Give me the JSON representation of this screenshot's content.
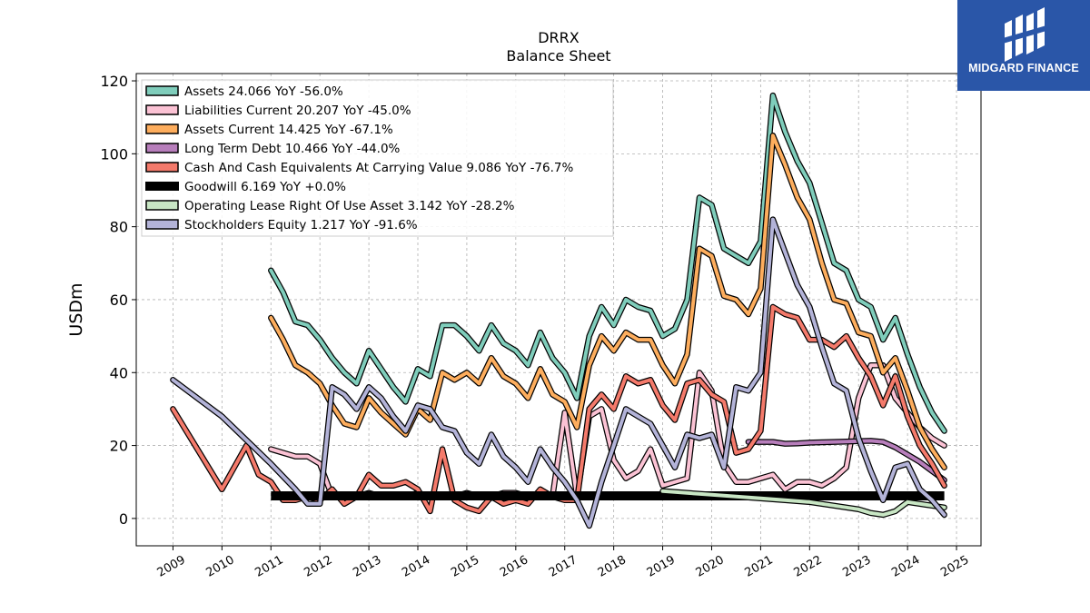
{
  "header": {
    "ticker": "DRRX",
    "subtitle": "Balance  Sheet"
  },
  "logo": {
    "text": "MIDGARD FINANCE",
    "color": "#2a56a8"
  },
  "chart_data": {
    "type": "line",
    "title": "DRRX",
    "subtitle": "Balance  Sheet",
    "xlabel": "",
    "ylabel": "USDm",
    "xlim": [
      2008.25,
      2025.5
    ],
    "ylim": [
      -7.5,
      122
    ],
    "yticks": [
      0,
      20,
      40,
      60,
      80,
      100,
      120
    ],
    "xticks": [
      "2009",
      "2010",
      "2011",
      "2012",
      "2013",
      "2014",
      "2015",
      "2016",
      "2017",
      "2018",
      "2019",
      "2020",
      "2021",
      "2022",
      "2023",
      "2024",
      "2025"
    ],
    "grid": true,
    "legend_position": "top-left",
    "series": [
      {
        "name": "Assets",
        "legend": "Assets  24.066 YoY -56.0%",
        "color": "#7fcdbb",
        "width": 4,
        "x": [
          2011.0,
          2011.25,
          2011.5,
          2011.75,
          2012.0,
          2012.25,
          2012.5,
          2012.75,
          2013.0,
          2013.25,
          2013.5,
          2013.75,
          2014.0,
          2014.25,
          2014.5,
          2014.75,
          2015.0,
          2015.25,
          2015.5,
          2015.75,
          2016.0,
          2016.25,
          2016.5,
          2016.75,
          2017.0,
          2017.25,
          2017.5,
          2017.75,
          2018.0,
          2018.25,
          2018.5,
          2018.75,
          2019.0,
          2019.25,
          2019.5,
          2019.75,
          2020.0,
          2020.25,
          2020.5,
          2020.75,
          2021.0,
          2021.25,
          2021.5,
          2021.75,
          2022.0,
          2022.25,
          2022.5,
          2022.75,
          2023.0,
          2023.25,
          2023.5,
          2023.75,
          2024.0,
          2024.25,
          2024.5,
          2024.75
        ],
        "y": [
          68,
          62,
          54,
          53,
          49,
          44,
          40,
          37,
          46,
          41,
          36,
          32,
          41,
          39,
          53,
          53,
          50,
          46,
          53,
          48,
          46,
          42,
          51,
          44,
          40,
          33,
          50,
          58,
          53,
          60,
          58,
          57,
          50,
          52,
          60,
          88,
          86,
          74,
          72,
          70,
          76,
          116,
          106,
          98,
          92,
          81,
          70,
          68,
          60,
          58,
          49,
          55,
          45,
          36,
          29,
          24
        ]
      },
      {
        "name": "Liabilities Current",
        "legend": "Liabilities Current  20.207 YoY -45.0%",
        "color": "#fbc2d4",
        "width": 4,
        "x": [
          2011.0,
          2011.25,
          2011.5,
          2011.75,
          2012.0,
          2012.25,
          2012.5,
          2012.75,
          2013.0,
          2013.25,
          2013.5,
          2013.75,
          2014.0,
          2014.25,
          2014.5,
          2014.75,
          2015.0,
          2015.25,
          2015.5,
          2015.75,
          2016.0,
          2016.25,
          2016.5,
          2016.75,
          2017.0,
          2017.25,
          2017.5,
          2017.75,
          2018.0,
          2018.25,
          2018.5,
          2018.75,
          2019.0,
          2019.25,
          2019.5,
          2019.75,
          2020.0,
          2020.25,
          2020.5,
          2020.75,
          2021.0,
          2021.25,
          2021.5,
          2021.75,
          2022.0,
          2022.25,
          2022.5,
          2022.75,
          2023.0,
          2023.25,
          2023.5,
          2023.75,
          2024.0,
          2024.25,
          2024.5,
          2024.75
        ],
        "y": [
          19,
          18,
          17,
          17,
          15,
          6,
          6,
          6,
          7,
          6,
          6,
          6,
          7,
          6,
          6,
          6,
          7,
          6,
          6,
          7,
          7,
          6,
          6,
          6,
          29,
          6,
          28,
          30,
          16,
          11,
          13,
          19,
          9,
          10,
          11,
          40,
          35,
          15,
          10,
          10,
          11,
          12,
          8,
          10,
          10,
          9,
          11,
          14,
          33,
          42,
          42,
          33,
          29,
          25,
          22,
          20
        ]
      },
      {
        "name": "Assets Current",
        "legend": "Assets Current  14.425 YoY -67.1%",
        "color": "#fdad5d",
        "width": 4,
        "x": [
          2011.0,
          2011.25,
          2011.5,
          2011.75,
          2012.0,
          2012.25,
          2012.5,
          2012.75,
          2013.0,
          2013.25,
          2013.5,
          2013.75,
          2014.0,
          2014.25,
          2014.5,
          2014.75,
          2015.0,
          2015.25,
          2015.5,
          2015.75,
          2016.0,
          2016.25,
          2016.5,
          2016.75,
          2017.0,
          2017.25,
          2017.5,
          2017.75,
          2018.0,
          2018.25,
          2018.5,
          2018.75,
          2019.0,
          2019.25,
          2019.5,
          2019.75,
          2020.0,
          2020.25,
          2020.5,
          2020.75,
          2021.0,
          2021.25,
          2021.5,
          2021.75,
          2022.0,
          2022.25,
          2022.5,
          2022.75,
          2023.0,
          2023.25,
          2023.5,
          2023.75,
          2024.0,
          2024.25,
          2024.5,
          2024.75
        ],
        "y": [
          55,
          49,
          42,
          40,
          37,
          31,
          26,
          25,
          33,
          29,
          26,
          23,
          30,
          27,
          40,
          38,
          40,
          37,
          44,
          39,
          37,
          33,
          41,
          34,
          32,
          25,
          42,
          50,
          46,
          51,
          49,
          49,
          42,
          37,
          45,
          74,
          72,
          61,
          60,
          56,
          63,
          105,
          97,
          88,
          82,
          70,
          60,
          59,
          51,
          50,
          40,
          44,
          35,
          25,
          19,
          14
        ]
      },
      {
        "name": "Long Term Debt",
        "legend": "Long Term Debt  10.466 YoY -44.0%",
        "color": "#b77ebb",
        "width": 4,
        "x": [
          2020.75,
          2021.0,
          2021.25,
          2021.5,
          2021.75,
          2022.0,
          2022.25,
          2022.5,
          2022.75,
          2023.0,
          2023.25,
          2023.5,
          2023.75,
          2024.0,
          2024.25,
          2024.5,
          2024.75
        ],
        "y": [
          21,
          21,
          21,
          20.5,
          20.6,
          20.8,
          20.9,
          21,
          21.1,
          21.2,
          21.3,
          21,
          19.5,
          17.5,
          15.5,
          13,
          10.5
        ]
      },
      {
        "name": "Cash And Cash Equivalents At Carrying Value",
        "legend": "Cash And Cash Equivalents At Carrying Value  9.086 YoY -76.7%",
        "color": "#f47a6b",
        "width": 4,
        "x": [
          2009.0,
          2010.0,
          2010.5,
          2010.75,
          2011.0,
          2011.25,
          2011.5,
          2011.75,
          2012.0,
          2012.25,
          2012.5,
          2012.75,
          2013.0,
          2013.25,
          2013.5,
          2013.75,
          2014.0,
          2014.25,
          2014.5,
          2014.75,
          2015.0,
          2015.25,
          2015.5,
          2015.75,
          2016.0,
          2016.25,
          2016.5,
          2016.75,
          2017.0,
          2017.25,
          2017.5,
          2017.75,
          2018.0,
          2018.25,
          2018.5,
          2018.75,
          2019.0,
          2019.25,
          2019.5,
          2019.75,
          2020.0,
          2020.25,
          2020.5,
          2020.75,
          2021.0,
          2021.25,
          2021.5,
          2021.75,
          2022.0,
          2022.25,
          2022.5,
          2022.75,
          2023.0,
          2023.25,
          2023.5,
          2023.75,
          2024.0,
          2024.25,
          2024.5,
          2024.75
        ],
        "y": [
          30,
          8,
          20,
          12,
          10,
          5,
          5,
          6,
          5,
          8,
          4,
          6,
          12,
          9,
          9,
          10,
          8,
          2,
          19,
          5,
          3,
          2,
          6,
          4,
          5,
          4,
          8,
          6,
          5,
          5,
          30,
          34,
          30,
          39,
          37,
          38,
          31,
          27,
          37,
          38,
          34,
          32,
          18,
          19,
          24,
          58,
          56,
          55,
          49,
          49,
          47,
          50,
          44,
          39,
          31,
          39,
          28,
          20,
          15,
          9
        ]
      },
      {
        "name": "Goodwill",
        "legend": "Goodwill  6.169 YoY +0.0%",
        "color": "#000000",
        "width": 10,
        "x": [
          2011.0,
          2024.75
        ],
        "y": [
          6.2,
          6.2
        ]
      },
      {
        "name": "Operating Lease Right Of Use Asset",
        "legend": "Operating Lease Right Of Use Asset  3.142 YoY -28.2%",
        "color": "#c8e6c4",
        "width": 4,
        "x": [
          2019.0,
          2019.5,
          2020.0,
          2020.5,
          2021.0,
          2021.5,
          2022.0,
          2022.5,
          2023.0,
          2023.25,
          2023.5,
          2023.75,
          2024.0,
          2024.25,
          2024.5,
          2024.75
        ],
        "y": [
          7.5,
          7,
          6.5,
          6,
          5.5,
          5,
          4.5,
          3.5,
          2.5,
          1.5,
          1,
          2,
          4.5,
          4,
          3.5,
          3
        ]
      },
      {
        "name": "Stockholders Equity",
        "legend": "Stockholders Equity  1.217 YoY -91.6%",
        "color": "#b3b3d8",
        "width": 4,
        "x": [
          2009.0,
          2010.0,
          2011.0,
          2011.5,
          2011.75,
          2012.0,
          2012.25,
          2012.5,
          2012.75,
          2013.0,
          2013.25,
          2013.5,
          2013.75,
          2014.0,
          2014.25,
          2014.5,
          2014.75,
          2015.0,
          2015.25,
          2015.5,
          2015.75,
          2016.0,
          2016.25,
          2016.5,
          2016.75,
          2017.0,
          2017.25,
          2017.5,
          2017.75,
          2018.0,
          2018.25,
          2018.5,
          2018.75,
          2019.0,
          2019.25,
          2019.5,
          2019.75,
          2020.0,
          2020.25,
          2020.5,
          2020.75,
          2021.0,
          2021.25,
          2021.5,
          2021.75,
          2022.0,
          2022.25,
          2022.5,
          2022.75,
          2023.0,
          2023.25,
          2023.5,
          2023.75,
          2024.0,
          2024.25,
          2024.5,
          2024.75
        ],
        "y": [
          38,
          28,
          15,
          8,
          4,
          4,
          36,
          34,
          30,
          36,
          33,
          28,
          24,
          31,
          30,
          25,
          24,
          18,
          15,
          23,
          17,
          14,
          10,
          19,
          14,
          10,
          5,
          -2,
          10,
          20,
          30,
          28,
          26,
          20,
          14,
          23,
          22,
          23,
          14,
          36,
          35,
          40,
          82,
          73,
          64,
          58,
          47,
          37,
          35,
          22,
          13,
          5,
          14,
          15,
          8,
          5,
          1
        ]
      }
    ]
  }
}
